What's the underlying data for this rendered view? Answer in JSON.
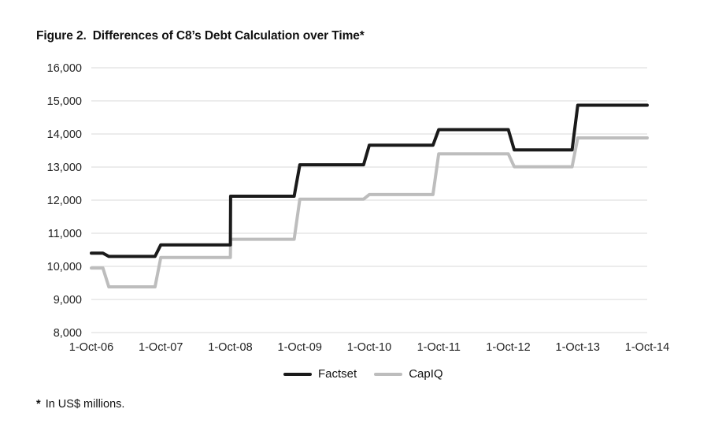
{
  "title": {
    "figure_label": "Figure 2.",
    "text": "Differences of C8’s Debt Calculation over Time*"
  },
  "footnote": {
    "marker": "*",
    "text": "In US$ millions."
  },
  "chart_data": {
    "type": "line",
    "title": "Differences of C8’s Debt Calculation over Time*",
    "xlabel": "",
    "ylabel": "",
    "x_ticks": [
      "1-Oct-06",
      "1-Oct-07",
      "1-Oct-08",
      "1-Oct-09",
      "1-Oct-10",
      "1-Oct-11",
      "1-Oct-12",
      "1-Oct-13",
      "1-Oct-14"
    ],
    "ylim": [
      8000,
      16000
    ],
    "y_ticks": [
      "8,000",
      "9,000",
      "10,000",
      "11,000",
      "12,000",
      "13,000",
      "14,000",
      "15,000",
      "16,000"
    ],
    "grid": "horizontal",
    "legend": "bottom",
    "series": [
      {
        "name": "Factset",
        "color": "#1a1a1a",
        "points": [
          [
            "2006-10-01",
            10400
          ],
          [
            "2006-12-01",
            10400
          ],
          [
            "2007-01-01",
            10300
          ],
          [
            "2007-09-01",
            10300
          ],
          [
            "2007-10-01",
            10650
          ],
          [
            "2008-10-01",
            10650
          ],
          [
            "2008-10-02",
            12120
          ],
          [
            "2009-09-01",
            12120
          ],
          [
            "2009-10-01",
            13070
          ],
          [
            "2010-09-01",
            13070
          ],
          [
            "2010-10-01",
            13660
          ],
          [
            "2011-09-01",
            13660
          ],
          [
            "2011-10-01",
            14130
          ],
          [
            "2012-10-01",
            14130
          ],
          [
            "2012-11-01",
            13520
          ],
          [
            "2013-09-01",
            13520
          ],
          [
            "2013-10-01",
            14870
          ],
          [
            "2014-10-01",
            14870
          ]
        ]
      },
      {
        "name": "CapIQ",
        "color": "#bdbdbd",
        "points": [
          [
            "2006-10-01",
            9950
          ],
          [
            "2006-12-01",
            9950
          ],
          [
            "2007-01-01",
            9380
          ],
          [
            "2007-09-01",
            9380
          ],
          [
            "2007-10-01",
            10270
          ],
          [
            "2008-10-01",
            10270
          ],
          [
            "2008-10-02",
            10820
          ],
          [
            "2009-09-01",
            10820
          ],
          [
            "2009-10-01",
            12030
          ],
          [
            "2010-09-01",
            12030
          ],
          [
            "2010-10-01",
            12170
          ],
          [
            "2011-09-01",
            12170
          ],
          [
            "2011-10-01",
            13400
          ],
          [
            "2012-10-01",
            13400
          ],
          [
            "2012-11-01",
            13010
          ],
          [
            "2013-09-01",
            13010
          ],
          [
            "2013-10-01",
            13880
          ],
          [
            "2014-10-01",
            13880
          ]
        ]
      }
    ]
  }
}
